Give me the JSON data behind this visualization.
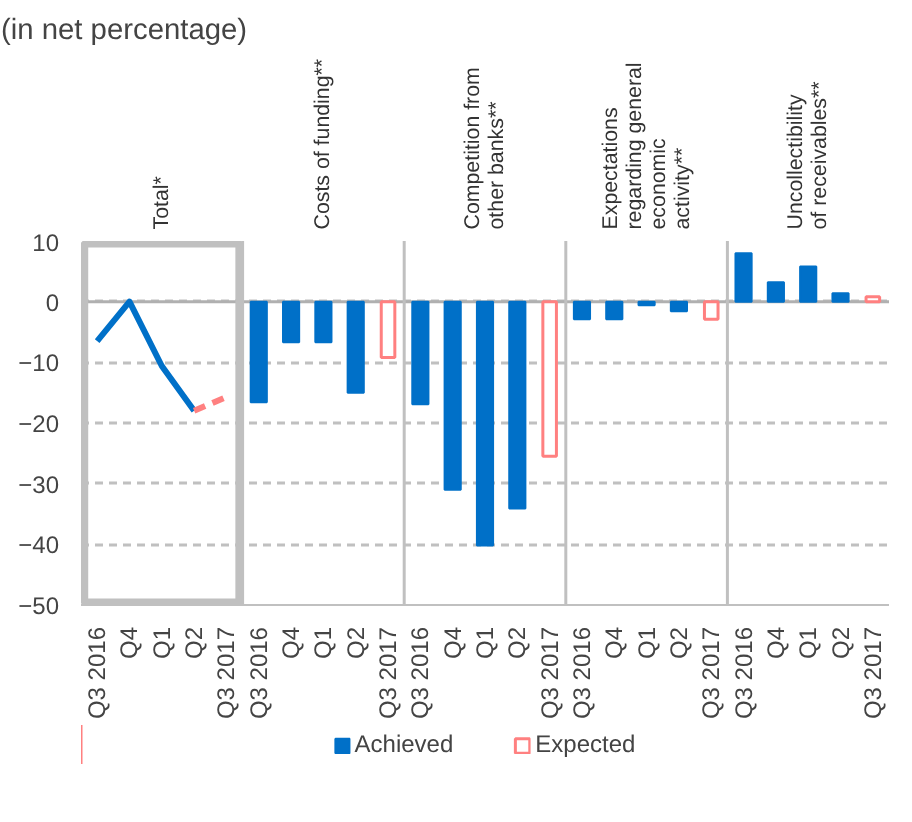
{
  "chart_data": {
    "type": "bar",
    "subtitle": "(in net percentage)",
    "categories": [
      "Q3 2016",
      "Q4",
      "Q1",
      "Q2",
      "Q3 2017",
      "Q3 2016",
      "Q4",
      "Q1",
      "Q2",
      "Q3 2017",
      "Q3 2016",
      "Q4",
      "Q1",
      "Q2",
      "Q3 2017",
      "Q3 2016",
      "Q4",
      "Q1",
      "Q2",
      "Q3 2017",
      "Q3 2016",
      "Q4",
      "Q1",
      "Q2",
      "Q3 2017"
    ],
    "annotations": [
      "Total*",
      "Costs of funding**",
      "Competition from other banks**",
      "Expectations regarding general economic activity**",
      "Uncollectibility of receivables**"
    ],
    "series": [
      {
        "name": "Achieved",
        "color": "#0070c8",
        "values": [
          null,
          null,
          null,
          null,
          null,
          -16.6,
          -6.7,
          -6.7,
          -15,
          null,
          -16.9,
          -31,
          -40.2,
          -34.1,
          null,
          -2.9,
          -2.9,
          -0.6,
          -1.6,
          null,
          8,
          3.2,
          5.8,
          1.4,
          null
        ]
      },
      {
        "name": "Expected",
        "color": "#ff8080",
        "line_style": "solid",
        "values": [
          null,
          null,
          null,
          null,
          null,
          null,
          null,
          null,
          null,
          -9.2,
          null,
          null,
          null,
          null,
          -25.5,
          null,
          null,
          null,
          null,
          -2.9,
          null,
          null,
          null,
          null,
          0.8
        ]
      },
      {
        "type": "line",
        "color": "#0070c8",
        "values": [
          -6.5,
          0,
          -10.6,
          -18,
          null,
          null,
          null,
          null,
          null,
          null,
          null,
          null,
          null,
          null,
          null,
          null,
          null,
          null,
          null,
          null,
          null,
          null,
          null,
          null,
          null
        ]
      },
      {
        "type": "line",
        "color": "#ff8080",
        "line_style": "dashed",
        "values": [
          null,
          null,
          null,
          -18,
          -15.7,
          null,
          null,
          null,
          null,
          null,
          null,
          null,
          null,
          null,
          null,
          null,
          null,
          null,
          null,
          null,
          null,
          null,
          null,
          null,
          null
        ]
      }
    ],
    "ylim": [
      -50,
      10
    ],
    "yticks": [
      -50,
      -40,
      -30,
      -20,
      -10,
      0,
      10
    ],
    "grid": "y",
    "ref_lines": [
      {
        "axis": "y",
        "value": 0,
        "color": "#b0b0b0"
      }
    ],
    "legend": "bottom"
  }
}
